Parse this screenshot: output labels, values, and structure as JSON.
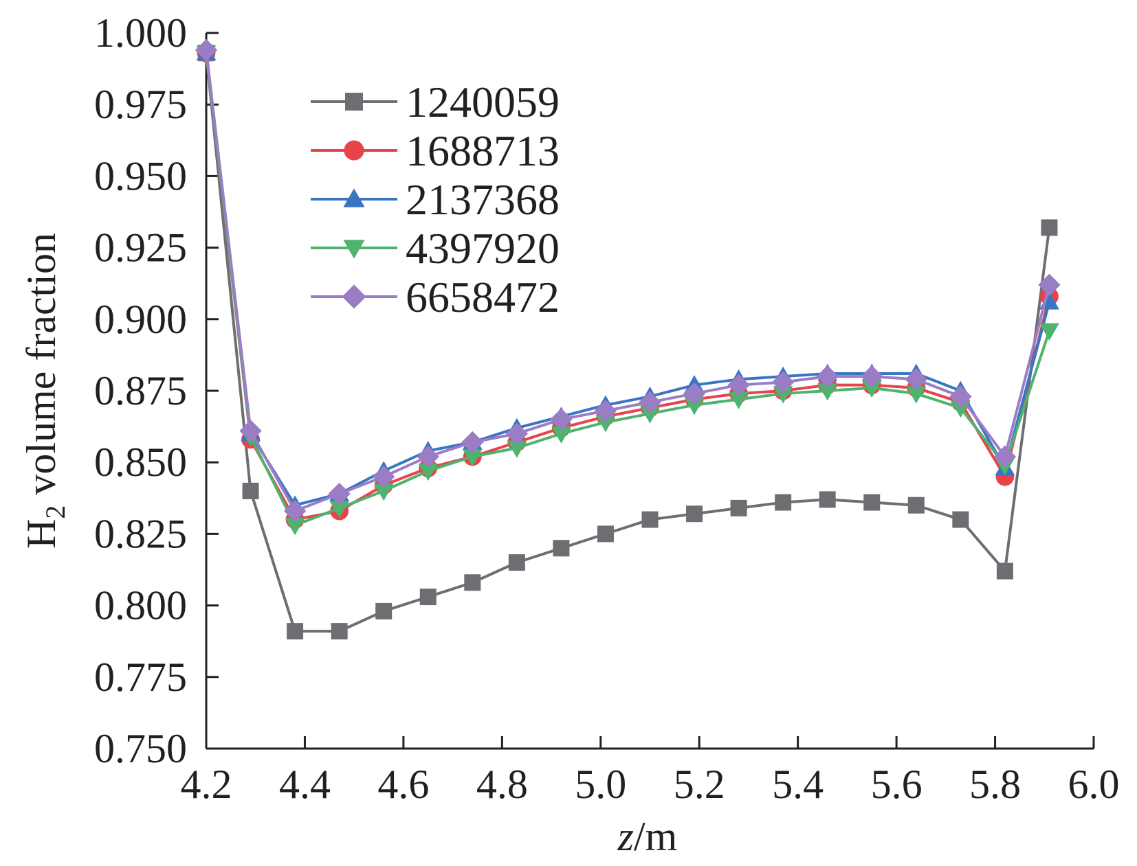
{
  "chart_data": {
    "type": "line",
    "xlabel": {
      "var": "z",
      "unit": "/m"
    },
    "ylabel": {
      "prefix": "H",
      "sub": "2",
      "suffix": " volume fraction"
    },
    "xlim": [
      4.2,
      6.0
    ],
    "ylim": [
      0.75,
      1.0
    ],
    "xticks": [
      "4.2",
      "4.4",
      "4.6",
      "4.8",
      "5.0",
      "5.2",
      "5.4",
      "5.6",
      "5.8",
      "6.0"
    ],
    "yticks": [
      "0.750",
      "0.775",
      "0.800",
      "0.825",
      "0.850",
      "0.875",
      "0.900",
      "0.925",
      "0.950",
      "0.975",
      "1.000"
    ],
    "grid": false,
    "legend_position": "top-left",
    "x": [
      4.2,
      4.29,
      4.38,
      4.47,
      4.56,
      4.65,
      4.74,
      4.83,
      4.92,
      5.01,
      5.1,
      5.19,
      5.28,
      5.37,
      5.46,
      5.55,
      5.64,
      5.73,
      5.82,
      5.91
    ],
    "series": [
      {
        "name": "1240059",
        "color": "#6d6e71",
        "marker": "square",
        "values": [
          0.993,
          0.84,
          0.791,
          0.791,
          0.798,
          0.803,
          0.808,
          0.815,
          0.82,
          0.825,
          0.83,
          0.832,
          0.834,
          0.836,
          0.837,
          0.836,
          0.835,
          0.83,
          0.812,
          0.932
        ]
      },
      {
        "name": "1688713",
        "color": "#e8434b",
        "marker": "circle",
        "values": [
          0.993,
          0.858,
          0.83,
          0.833,
          0.842,
          0.848,
          0.852,
          0.857,
          0.862,
          0.866,
          0.869,
          0.872,
          0.874,
          0.875,
          0.877,
          0.877,
          0.876,
          0.871,
          0.845,
          0.908
        ]
      },
      {
        "name": "2137368",
        "color": "#3a75c4",
        "marker": "triangle-up",
        "values": [
          0.993,
          0.86,
          0.835,
          0.839,
          0.847,
          0.854,
          0.857,
          0.862,
          0.866,
          0.87,
          0.873,
          0.877,
          0.879,
          0.88,
          0.881,
          0.881,
          0.881,
          0.875,
          0.848,
          0.906
        ]
      },
      {
        "name": "4397920",
        "color": "#4fb26e",
        "marker": "triangle-down",
        "values": [
          0.993,
          0.859,
          0.828,
          0.834,
          0.84,
          0.847,
          0.852,
          0.855,
          0.86,
          0.864,
          0.867,
          0.87,
          0.872,
          0.874,
          0.875,
          0.876,
          0.874,
          0.869,
          0.849,
          0.896
        ]
      },
      {
        "name": "6658472",
        "color": "#9a7dc5",
        "marker": "diamond",
        "values": [
          0.994,
          0.861,
          0.833,
          0.839,
          0.845,
          0.852,
          0.857,
          0.86,
          0.865,
          0.868,
          0.871,
          0.874,
          0.877,
          0.878,
          0.88,
          0.88,
          0.879,
          0.873,
          0.852,
          0.912
        ]
      }
    ]
  }
}
